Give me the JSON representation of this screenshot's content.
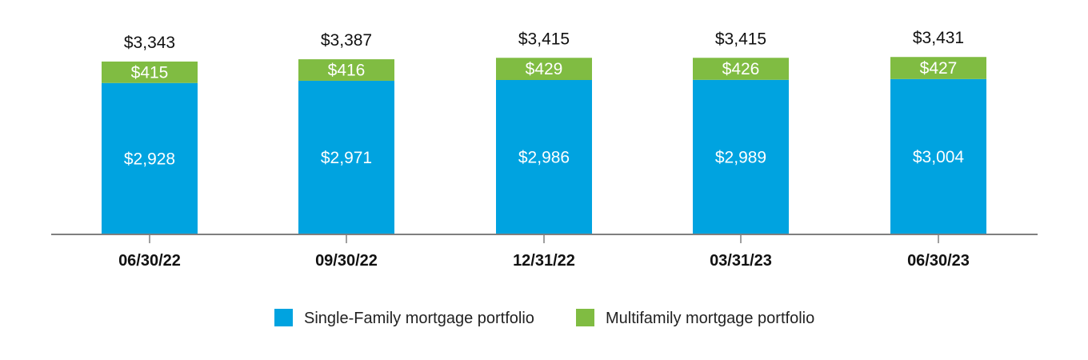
{
  "chart_data": {
    "type": "bar",
    "stacked": true,
    "categories": [
      "06/30/22",
      "09/30/22",
      "12/31/22",
      "03/31/23",
      "06/30/23"
    ],
    "series": [
      {
        "name": "Single-Family mortgage portfolio",
        "color": "#00a3e0",
        "values": [
          2928,
          2971,
          2986,
          2989,
          3004
        ],
        "labels": [
          "$2,928",
          "$2,971",
          "$2,986",
          "$2,989",
          "$3,004"
        ]
      },
      {
        "name": "Multifamily mortgage portfolio",
        "color": "#80bc42",
        "values": [
          415,
          416,
          429,
          426,
          427
        ],
        "labels": [
          "$415",
          "$416",
          "$429",
          "$426",
          "$427"
        ]
      }
    ],
    "totals": [
      3343,
      3387,
      3415,
      3415,
      3431
    ],
    "total_labels": [
      "$3,343",
      "$3,387",
      "$3,415",
      "$3,415",
      "$3,431"
    ],
    "legend_position": "bottom",
    "grid": false,
    "ylim": [
      0,
      3450
    ]
  }
}
